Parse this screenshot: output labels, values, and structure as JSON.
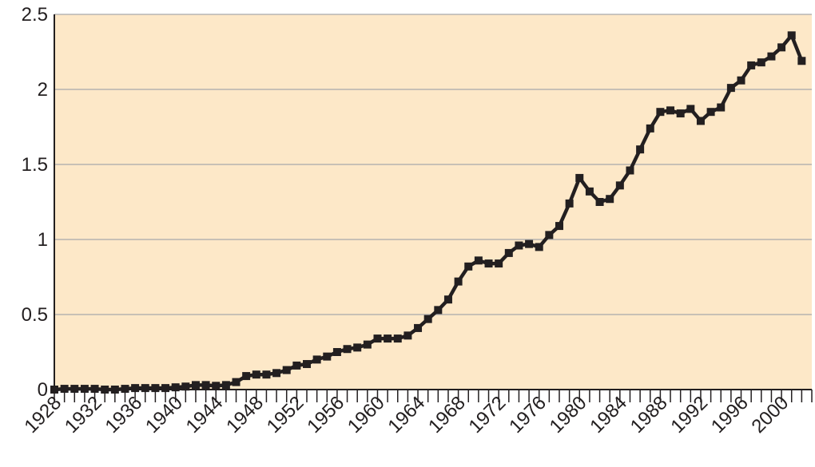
{
  "colors": {
    "plot_background": "#fde8c8",
    "line": "#231f20",
    "grid": "#a7a9ac",
    "axis": "#231f20"
  },
  "chart_data": {
    "type": "line",
    "title": "",
    "xlabel": "",
    "ylabel": "",
    "xlim": [
      1928,
      2003
    ],
    "ylim": [
      0,
      2.5
    ],
    "x_tick_labels": [
      "1928",
      "1932",
      "1936",
      "1940",
      "1944",
      "1948",
      "1952",
      "1956",
      "1960",
      "1964",
      "1968",
      "1972",
      "1976",
      "1980",
      "1984",
      "1988",
      "1992",
      "1996",
      "2000"
    ],
    "y_tick_labels": [
      "0",
      "0.5",
      "1",
      "1.5",
      "2",
      "2.5"
    ],
    "y_ticks": [
      0,
      0.5,
      1,
      1.5,
      2,
      2.5
    ],
    "grid": "horizontal",
    "legend": "none",
    "markers": "square",
    "x": [
      1928,
      1929,
      1930,
      1931,
      1932,
      1933,
      1934,
      1935,
      1936,
      1937,
      1938,
      1939,
      1940,
      1941,
      1942,
      1943,
      1944,
      1945,
      1946,
      1947,
      1948,
      1949,
      1950,
      1951,
      1952,
      1953,
      1954,
      1955,
      1956,
      1957,
      1958,
      1959,
      1960,
      1961,
      1962,
      1963,
      1964,
      1965,
      1966,
      1967,
      1968,
      1969,
      1970,
      1971,
      1972,
      1973,
      1974,
      1975,
      1976,
      1977,
      1978,
      1979,
      1980,
      1981,
      1982,
      1983,
      1984,
      1985,
      1986,
      1987,
      1988,
      1989,
      1990,
      1991,
      1992,
      1993,
      1994,
      1995,
      1996,
      1997,
      1998,
      1999,
      2000,
      2001,
      2002
    ],
    "series": [
      {
        "values": [
          0,
          0.005,
          0.005,
          0.005,
          0.005,
          0,
          0,
          0.005,
          0.01,
          0.01,
          0.01,
          0.01,
          0.015,
          0.02,
          0.03,
          0.03,
          0.025,
          0.03,
          0.05,
          0.09,
          0.1,
          0.1,
          0.11,
          0.13,
          0.16,
          0.17,
          0.2,
          0.22,
          0.25,
          0.27,
          0.28,
          0.3,
          0.34,
          0.34,
          0.34,
          0.36,
          0.41,
          0.47,
          0.53,
          0.6,
          0.72,
          0.82,
          0.86,
          0.84,
          0.84,
          0.91,
          0.96,
          0.97,
          0.95,
          1.03,
          1.09,
          1.24,
          1.41,
          1.32,
          1.25,
          1.27,
          1.36,
          1.46,
          1.6,
          1.74,
          1.85,
          1.86,
          1.84,
          1.87,
          1.79,
          1.85,
          1.88,
          2.01,
          2.06,
          2.16,
          2.18,
          2.22,
          2.28,
          2.36,
          2.19
        ]
      }
    ]
  }
}
